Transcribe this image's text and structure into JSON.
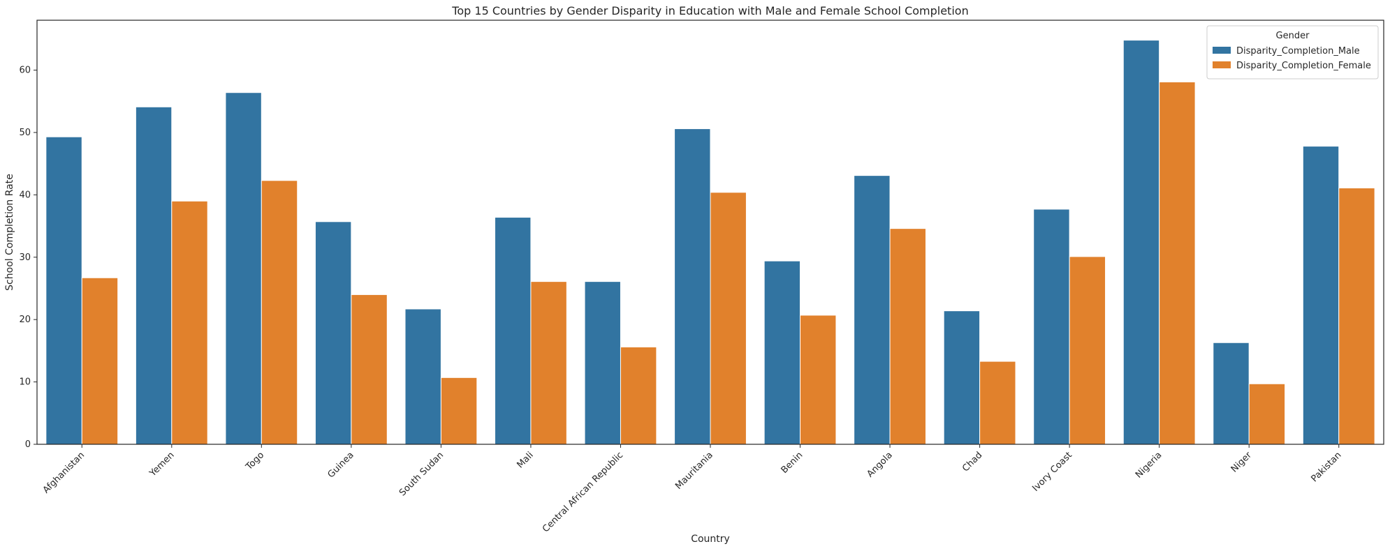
{
  "chart_data": {
    "type": "bar",
    "title": "Top 15 Countries by Gender Disparity in Education with Male and Female School Completion",
    "xlabel": "Country",
    "ylabel": "School Completion Rate",
    "ylim": [
      0,
      68
    ],
    "yticks": [
      0,
      10,
      20,
      30,
      40,
      50,
      60
    ],
    "grid": false,
    "legend": {
      "title": "Gender",
      "placement": "top-right"
    },
    "categories": [
      "Afghanistan",
      "Yemen",
      "Togo",
      "Guinea",
      "South Sudan",
      "Mali",
      "Central African Republic",
      "Mauritania",
      "Benin",
      "Angola",
      "Chad",
      "Ivory Coast",
      "Nigeria",
      "Niger",
      "Pakistan"
    ],
    "series": [
      {
        "name": "Disparity_Completion_Male",
        "color": "#3274a1",
        "values": [
          49.3,
          54.1,
          56.4,
          35.7,
          21.7,
          36.4,
          26.1,
          50.6,
          29.4,
          43.1,
          21.4,
          37.7,
          64.8,
          16.3,
          47.8
        ]
      },
      {
        "name": "Disparity_Completion_Female",
        "color": "#e1812c",
        "values": [
          26.7,
          39.0,
          42.3,
          24.0,
          10.7,
          26.1,
          15.6,
          40.4,
          20.7,
          34.6,
          13.3,
          30.1,
          58.1,
          9.7,
          41.1
        ]
      }
    ]
  }
}
